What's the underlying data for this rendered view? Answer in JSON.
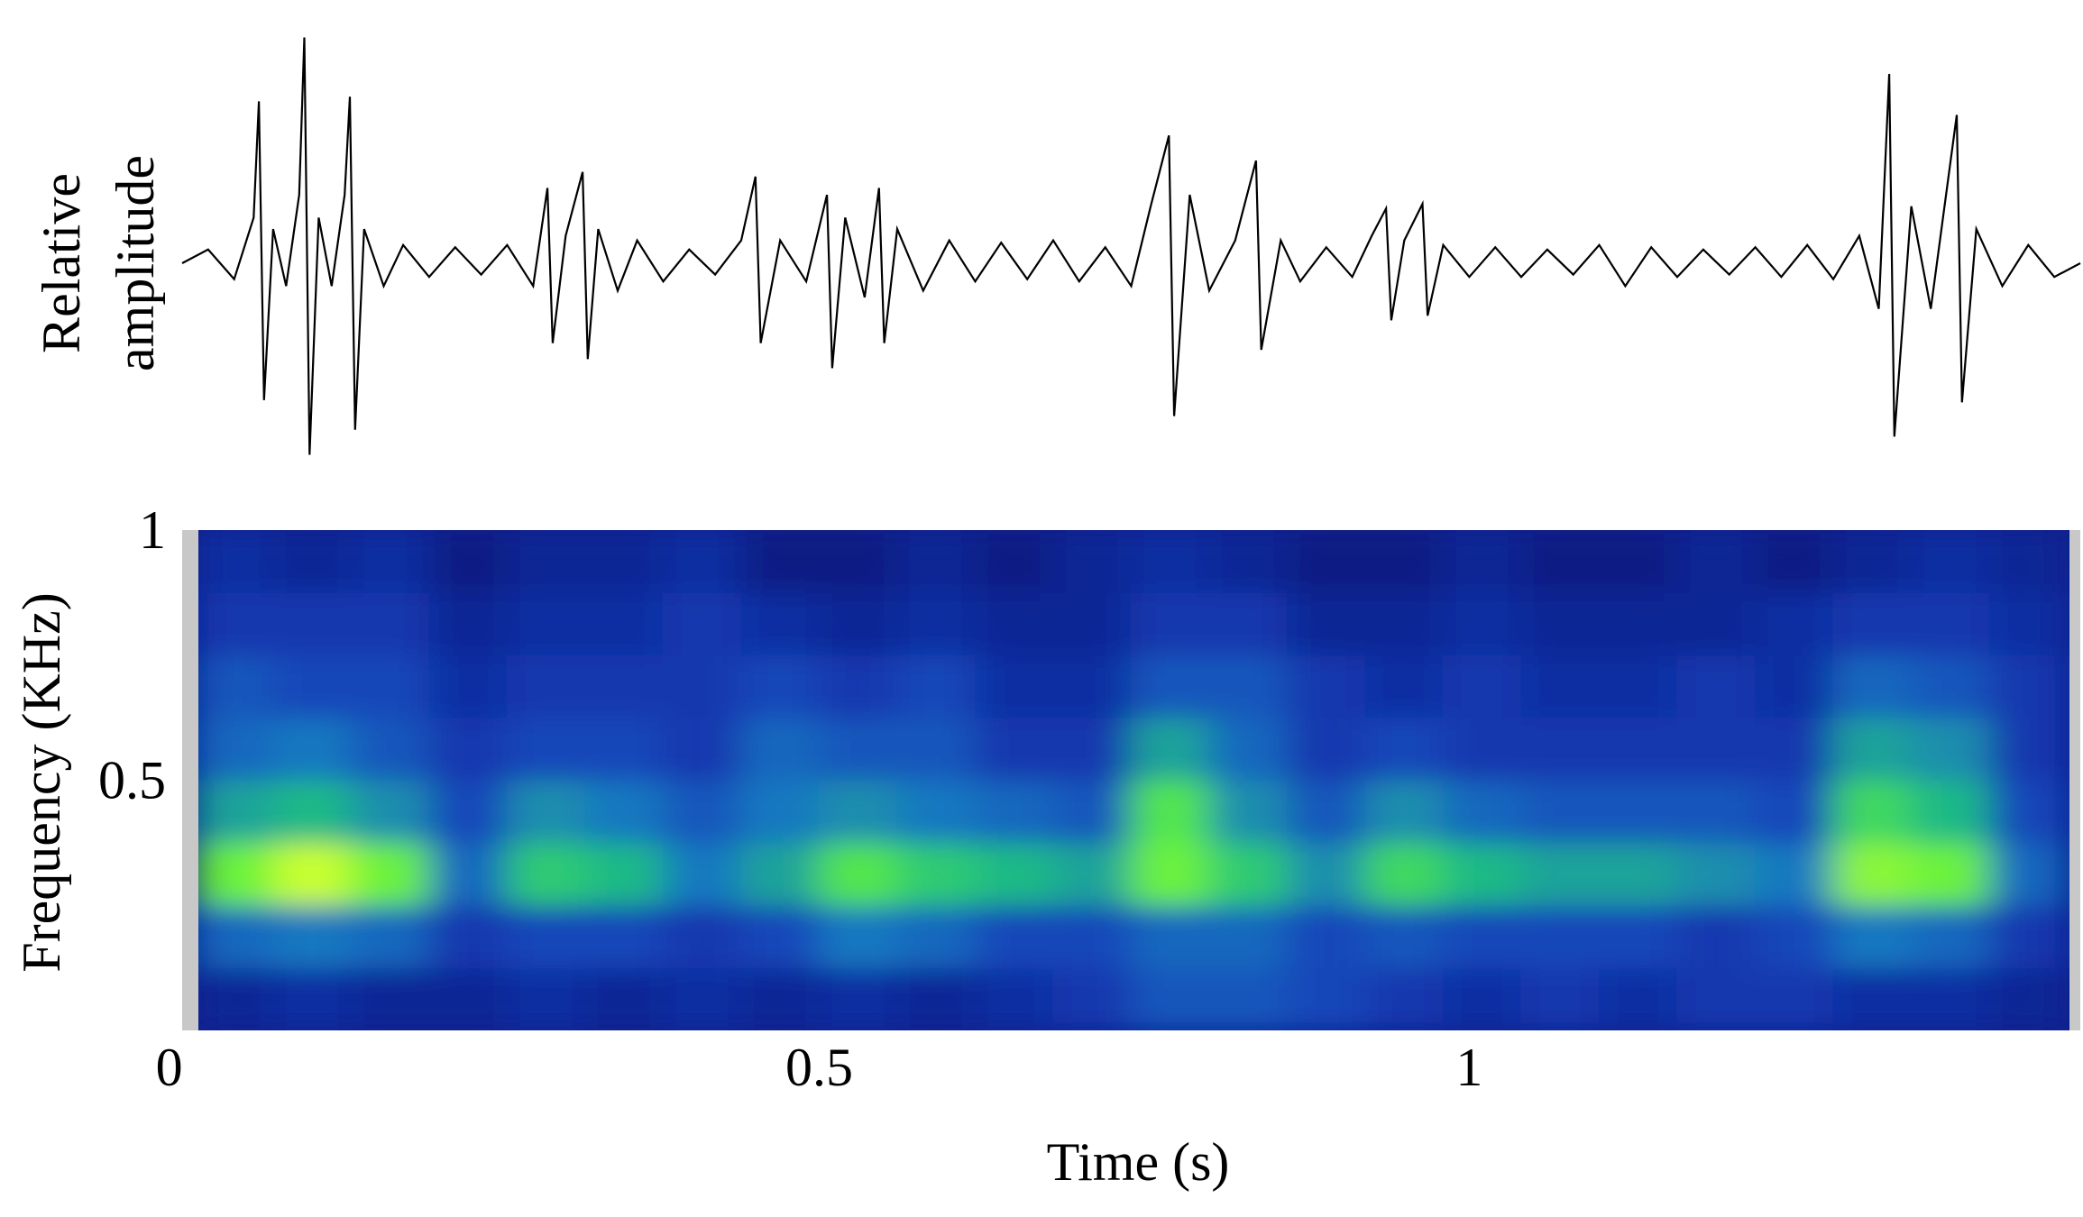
{
  "chart_data": [
    {
      "type": "line",
      "ylabel": [
        "Relative",
        "amplitude"
      ],
      "color": "#000000",
      "xlim": [
        0.01,
        1.47
      ],
      "ylim": [
        -1,
        1
      ],
      "x": [
        0.01,
        0.03,
        0.05,
        0.065,
        0.069,
        0.073,
        0.08,
        0.09,
        0.1,
        0.104,
        0.108,
        0.115,
        0.125,
        0.135,
        0.139,
        0.143,
        0.15,
        0.165,
        0.18,
        0.2,
        0.22,
        0.24,
        0.26,
        0.28,
        0.291,
        0.295,
        0.305,
        0.318,
        0.322,
        0.33,
        0.345,
        0.36,
        0.38,
        0.4,
        0.42,
        0.44,
        0.451,
        0.455,
        0.47,
        0.49,
        0.506,
        0.51,
        0.52,
        0.535,
        0.546,
        0.55,
        0.56,
        0.58,
        0.6,
        0.62,
        0.64,
        0.66,
        0.68,
        0.7,
        0.72,
        0.74,
        0.755,
        0.769,
        0.773,
        0.785,
        0.8,
        0.82,
        0.836,
        0.84,
        0.855,
        0.87,
        0.89,
        0.91,
        0.925,
        0.936,
        0.94,
        0.95,
        0.964,
        0.968,
        0.98,
        1.0,
        1.02,
        1.04,
        1.06,
        1.08,
        1.1,
        1.12,
        1.14,
        1.16,
        1.18,
        1.2,
        1.22,
        1.24,
        1.26,
        1.28,
        1.3,
        1.315,
        1.323,
        1.327,
        1.34,
        1.355,
        1.375,
        1.379,
        1.39,
        1.41,
        1.43,
        1.45,
        1.47
      ],
      "values": [
        0,
        0.06,
        -0.07,
        0.2,
        0.71,
        -0.6,
        0.15,
        -0.1,
        0.3,
        0.99,
        -0.84,
        0.2,
        -0.1,
        0.3,
        0.73,
        -0.73,
        0.15,
        -0.1,
        0.08,
        -0.06,
        0.07,
        -0.05,
        0.08,
        -0.1,
        0.33,
        -0.35,
        0.12,
        0.4,
        -0.42,
        0.15,
        -0.12,
        0.1,
        -0.08,
        0.06,
        -0.05,
        0.1,
        0.38,
        -0.35,
        0.1,
        -0.08,
        0.3,
        -0.46,
        0.2,
        -0.15,
        0.33,
        -0.35,
        0.15,
        -0.12,
        0.1,
        -0.08,
        0.09,
        -0.07,
        0.1,
        -0.08,
        0.07,
        -0.1,
        0.25,
        0.56,
        -0.67,
        0.3,
        -0.12,
        0.1,
        0.45,
        -0.38,
        0.1,
        -0.08,
        0.07,
        -0.06,
        0.12,
        0.24,
        -0.25,
        0.1,
        0.26,
        -0.23,
        0.08,
        -0.06,
        0.07,
        -0.06,
        0.06,
        -0.05,
        0.08,
        -0.1,
        0.07,
        -0.06,
        0.06,
        -0.05,
        0.07,
        -0.06,
        0.08,
        -0.07,
        0.12,
        -0.2,
        0.83,
        -0.76,
        0.25,
        -0.2,
        0.65,
        -0.61,
        0.15,
        -0.1,
        0.08,
        -0.06,
        0
      ]
    },
    {
      "type": "heatmap",
      "xlabel": "Time (s)",
      "ylabel": "Frequency (KHz)",
      "xlim": [
        0.01,
        1.47
      ],
      "ylim": [
        0,
        1
      ],
      "xticks": [
        0,
        0.5,
        1
      ],
      "yticks": [
        0.5,
        1
      ],
      "colorscale": [
        "#000830",
        "#0a1e8c",
        "#1840b8",
        "#1878c0",
        "#20c080",
        "#60f040",
        "#c8ff30"
      ],
      "xbins": [
        0.02,
        0.08,
        0.14,
        0.2,
        0.26,
        0.32,
        0.38,
        0.44,
        0.5,
        0.56,
        0.62,
        0.68,
        0.74,
        0.8,
        0.86,
        0.92,
        0.98,
        1.04,
        1.1,
        1.16,
        1.22,
        1.28,
        1.34,
        1.4,
        1.46
      ],
      "ybins": [
        0,
        0.125,
        0.25,
        0.375,
        0.5,
        0.625,
        0.75,
        0.875,
        1
      ],
      "z": [
        [
          0.2,
          0.25,
          0.2,
          0.2,
          0.25,
          0.2,
          0.25,
          0.2,
          0.25,
          0.2,
          0.25,
          0.3,
          0.4,
          0.4,
          0.35,
          0.3,
          0.25,
          0.3,
          0.25,
          0.3,
          0.3,
          0.25,
          0.25,
          0.2
        ],
        [
          0.45,
          0.5,
          0.45,
          0.3,
          0.35,
          0.35,
          0.3,
          0.35,
          0.5,
          0.45,
          0.35,
          0.35,
          0.45,
          0.45,
          0.35,
          0.4,
          0.35,
          0.35,
          0.35,
          0.3,
          0.35,
          0.5,
          0.45,
          0.3
        ],
        [
          0.85,
          1.0,
          0.85,
          0.45,
          0.7,
          0.65,
          0.5,
          0.6,
          0.8,
          0.7,
          0.65,
          0.6,
          0.85,
          0.7,
          0.55,
          0.75,
          0.65,
          0.6,
          0.6,
          0.55,
          0.5,
          0.9,
          0.85,
          0.45
        ],
        [
          0.6,
          0.65,
          0.55,
          0.35,
          0.55,
          0.5,
          0.4,
          0.5,
          0.55,
          0.5,
          0.45,
          0.4,
          0.8,
          0.55,
          0.4,
          0.55,
          0.45,
          0.4,
          0.4,
          0.4,
          0.35,
          0.75,
          0.65,
          0.35
        ],
        [
          0.45,
          0.5,
          0.4,
          0.3,
          0.35,
          0.35,
          0.3,
          0.45,
          0.4,
          0.4,
          0.3,
          0.3,
          0.6,
          0.45,
          0.3,
          0.35,
          0.3,
          0.3,
          0.3,
          0.3,
          0.3,
          0.6,
          0.55,
          0.3
        ],
        [
          0.4,
          0.35,
          0.35,
          0.25,
          0.3,
          0.3,
          0.3,
          0.35,
          0.3,
          0.35,
          0.25,
          0.25,
          0.4,
          0.4,
          0.3,
          0.25,
          0.3,
          0.25,
          0.25,
          0.3,
          0.25,
          0.45,
          0.4,
          0.3
        ],
        [
          0.3,
          0.3,
          0.3,
          0.2,
          0.25,
          0.25,
          0.3,
          0.25,
          0.2,
          0.25,
          0.2,
          0.2,
          0.3,
          0.3,
          0.2,
          0.2,
          0.25,
          0.2,
          0.2,
          0.2,
          0.25,
          0.3,
          0.3,
          0.25
        ],
        [
          0.25,
          0.2,
          0.25,
          0.15,
          0.2,
          0.2,
          0.25,
          0.15,
          0.15,
          0.2,
          0.15,
          0.2,
          0.25,
          0.2,
          0.15,
          0.15,
          0.2,
          0.15,
          0.15,
          0.2,
          0.15,
          0.2,
          0.25,
          0.2
        ]
      ]
    }
  ]
}
